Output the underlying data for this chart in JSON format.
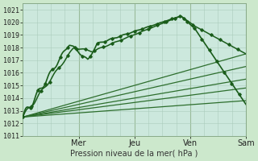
{
  "xlabel": "Pression niveau de la mer( hPa )",
  "ylim": [
    1011,
    1021.5
  ],
  "xlim": [
    0,
    96
  ],
  "bg_color": "#cce8cc",
  "plot_bg_color": "#cce8dd",
  "grid_color": "#aaccbb",
  "day_labels": [
    "Mer",
    "Jeu",
    "Ven",
    "Sam"
  ],
  "day_positions": [
    24,
    48,
    72,
    96
  ],
  "yticks": [
    1011,
    1012,
    1013,
    1014,
    1015,
    1016,
    1017,
    1018,
    1019,
    1020,
    1021
  ],
  "dark_green": "#1a5c1a",
  "mid_green": "#2a6e2a",
  "light_green_line": "#3a8a3a"
}
